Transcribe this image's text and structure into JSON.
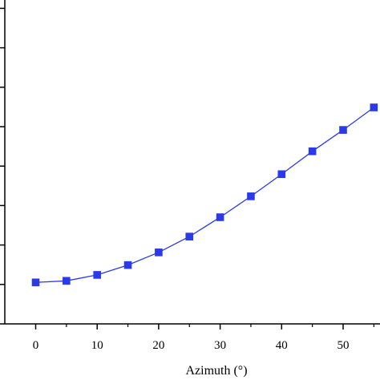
{
  "chart_data": {
    "type": "line",
    "xlabel": "Azimuth (°)",
    "ylabel": "",
    "xlim": [
      -5,
      57
    ],
    "ylim": [
      0,
      8.2
    ],
    "x_ticks": [
      0,
      10,
      20,
      30,
      40,
      50
    ],
    "x_minor_ticks": [
      5,
      15,
      25,
      35,
      45,
      55
    ],
    "y_tick_count": 9,
    "grid": false,
    "legend": "none",
    "series": [
      {
        "color": "#2a3ae8",
        "marker": "square",
        "x": [
          0,
          5,
          10,
          15,
          20,
          25,
          30,
          35,
          40,
          45,
          50,
          55
        ],
        "y": [
          1.05,
          1.09,
          1.24,
          1.49,
          1.81,
          2.21,
          2.7,
          3.23,
          3.79,
          4.37,
          4.91,
          5.48
        ]
      }
    ]
  }
}
